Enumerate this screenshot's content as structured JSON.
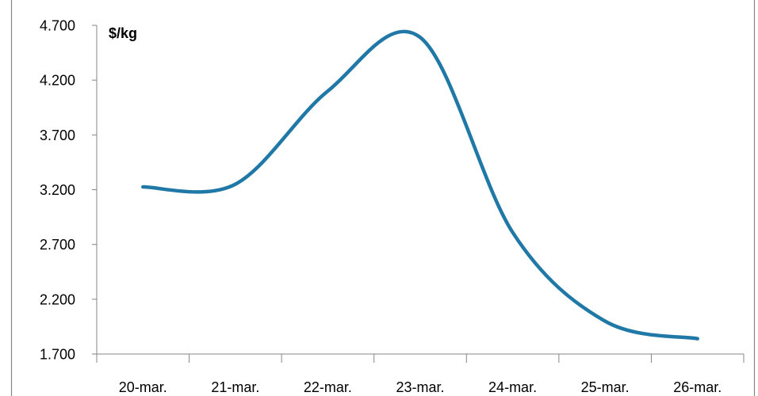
{
  "chart_data": {
    "type": "line",
    "ylabel": "$/kg",
    "categories": [
      "20-mar.",
      "21-mar.",
      "22-mar.",
      "23-mar.",
      "24-mar.",
      "25-mar.",
      "26-mar."
    ],
    "series": [
      {
        "values": [
          3.225,
          3.25,
          4.1,
          4.59,
          2.81,
          2.0,
          1.84
        ]
      }
    ],
    "ylim": [
      1.7,
      4.7
    ],
    "yticks": [
      "1.700",
      "2.200",
      "2.700",
      "3.200",
      "3.700",
      "4.200",
      "4.700"
    ],
    "ytick_values": [
      1.7,
      2.2,
      2.7,
      3.2,
      3.7,
      4.2,
      4.7
    ],
    "grid": false,
    "legend": "none"
  },
  "colors": {
    "line": "#1f78a6",
    "axis": "#868686"
  }
}
